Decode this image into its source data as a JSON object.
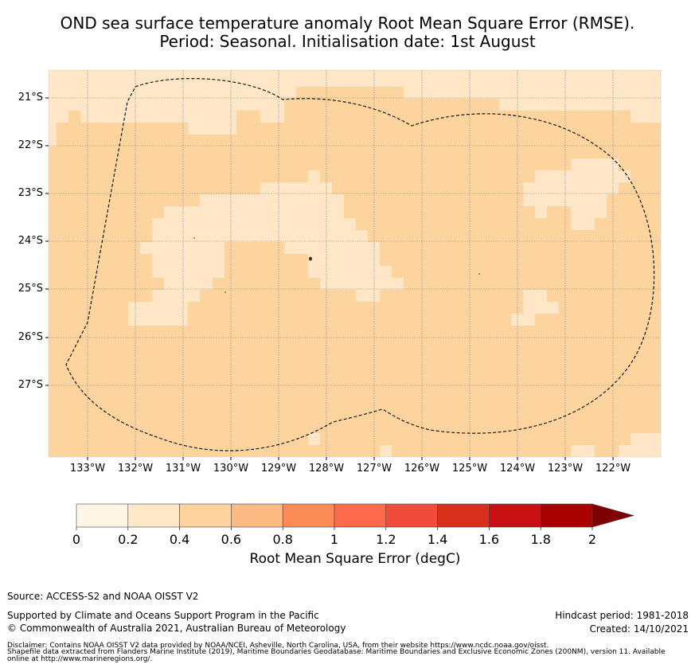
{
  "title": {
    "line1": "OND sea surface temperature anomaly Root Mean Square Error (RMSE).",
    "line2": "Period: Seasonal. Initialisation date: 1st August"
  },
  "map": {
    "lat_labels": [
      "21°S",
      "22°S",
      "23°S",
      "24°S",
      "25°S",
      "26°S",
      "27°S"
    ],
    "lon_labels": [
      "133°W",
      "132°W",
      "131°W",
      "130°W",
      "129°W",
      "128°W",
      "127°W",
      "126°W",
      "125°W",
      "124°W",
      "123°W",
      "122°W"
    ],
    "colors": {
      "bin_0_2": "#fff0dd",
      "bin_2_4": "#fee6c6",
      "bin_4_6": "#fdd49e",
      "grid": "#999999",
      "boundary": "#000000"
    }
  },
  "colorbar": {
    "label": "Root Mean Square Error (degC)",
    "ticks": [
      "0",
      "0.2",
      "0.4",
      "0.6",
      "0.8",
      "1",
      "1.2",
      "1.4",
      "1.6",
      "1.8",
      "2"
    ],
    "colors": [
      "#fff5e6",
      "#fee8c8",
      "#fdd49e",
      "#fdbb84",
      "#fc8d59",
      "#fb6a4a",
      "#ef4c3b",
      "#d7301f",
      "#c80f14",
      "#a90000",
      "#7f0000"
    ]
  },
  "footer": {
    "source": "Source: ACCESS-S2 and NOAA OISST V2",
    "supported": "Supported by Climate and Oceans Support Program in the Pacific",
    "copyright": "© Commonwealth of Australia 2021, Australian Bureau of Meteorology",
    "hindcast": "Hindcast period: 1981-2018",
    "created": "Created: 14/10/2021",
    "disclaimer1": "Disclaimer: Contains NOAA OISST V2 data provided by NOAA/NCEI, Asheville, North Carolina, USA, from their website https://www.ncdc.noaa.gov/oisst.",
    "disclaimer2": "Shapefile data extracted from Flanders Marine Institute (2019), Maritime Boundaries Geodatabase: Maritime Boundaries and Exclusive Economic Zones (200NM), version 11. Available",
    "disclaimer3": "online at http://www.marineregions.org/."
  }
}
